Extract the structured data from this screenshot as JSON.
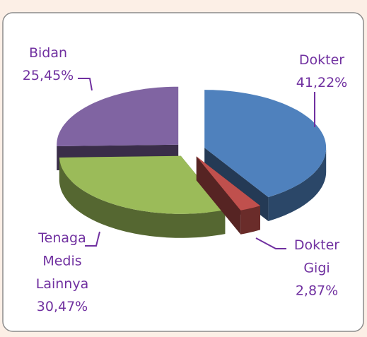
{
  "chart_data": {
    "type": "pie",
    "categories": [
      "Dokter",
      "Dokter Gigi",
      "Tenaga Medis Lainnya",
      "Bidan"
    ],
    "values": [
      41.22,
      2.87,
      30.47,
      25.45
    ],
    "value_labels": [
      "41,22%",
      "2,87%",
      "30,47%",
      "25,45%"
    ],
    "colors": [
      "#4f81bd",
      "#c0504d",
      "#9bbb59",
      "#8064a2"
    ]
  }
}
